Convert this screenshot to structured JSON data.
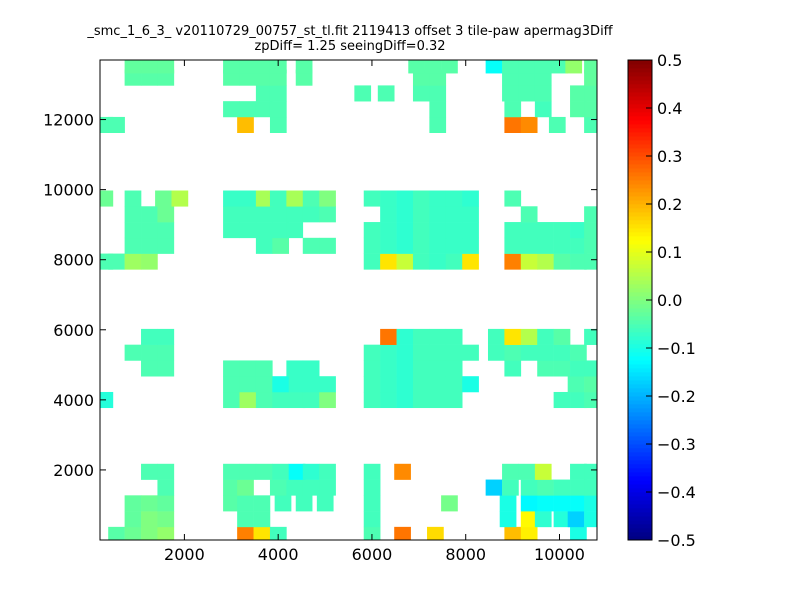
{
  "chart_data": {
    "type": "heatmap",
    "title_lines": [
      "_smc_1_6_3_ v20110729_00757_st_tl.fit 2119413 offset 3 tile-paw apermag3Diff",
      "zpDiff= 1.25 seeingDiff=0.32"
    ],
    "xlabel": "",
    "ylabel": "",
    "xlim": [
      200,
      10800
    ],
    "ylim": [
      0,
      13700
    ],
    "x_ticks": [
      2000,
      4000,
      6000,
      8000,
      10000
    ],
    "y_ticks": [
      2000,
      4000,
      6000,
      8000,
      10000,
      12000
    ],
    "colorbar": {
      "colormap": "jet",
      "range": [
        -0.5,
        0.5
      ],
      "ticks": [
        -0.5,
        -0.4,
        -0.3,
        -0.2,
        -0.1,
        0.0,
        0.1,
        0.2,
        0.3,
        0.4,
        0.5
      ],
      "tick_labels": [
        "−0.5",
        "−0.4",
        "−0.3",
        "−0.2",
        "−0.1",
        "0.0",
        "0.1",
        "0.2",
        "0.3",
        "0.4",
        "0.5"
      ]
    },
    "cell_size": [
      350,
      450
    ],
    "cells": [
      [
        550,
        150,
        -0.04
      ],
      [
        900,
        150,
        -0.02
      ],
      [
        1250,
        150,
        0.0
      ],
      [
        1600,
        150,
        0.02
      ],
      [
        3300,
        150,
        0.25
      ],
      [
        3650,
        150,
        0.15
      ],
      [
        4000,
        150,
        -0.06
      ],
      [
        6000,
        150,
        -0.05
      ],
      [
        6650,
        150,
        0.26
      ],
      [
        7350,
        150,
        0.16
      ],
      [
        9000,
        150,
        0.19
      ],
      [
        9350,
        150,
        0.14
      ],
      [
        10400,
        150,
        -0.1
      ],
      [
        900,
        600,
        -0.03
      ],
      [
        1250,
        600,
        0.0
      ],
      [
        1600,
        600,
        -0.01
      ],
      [
        3300,
        600,
        -0.05
      ],
      [
        3650,
        600,
        -0.05
      ],
      [
        6000,
        600,
        -0.06
      ],
      [
        8900,
        600,
        -0.1
      ],
      [
        9350,
        600,
        0.13
      ],
      [
        9650,
        600,
        -0.08
      ],
      [
        10050,
        600,
        -0.09
      ],
      [
        10350,
        600,
        -0.17
      ],
      [
        10700,
        600,
        -0.1
      ],
      [
        900,
        1050,
        -0.03
      ],
      [
        1250,
        1050,
        -0.02
      ],
      [
        1600,
        1050,
        -0.03
      ],
      [
        3000,
        1050,
        -0.04
      ],
      [
        3300,
        1050,
        -0.05
      ],
      [
        3650,
        1050,
        -0.05
      ],
      [
        4100,
        1050,
        -0.06
      ],
      [
        4550,
        1050,
        -0.06
      ],
      [
        5000,
        1050,
        -0.06
      ],
      [
        6000,
        1050,
        -0.06
      ],
      [
        7650,
        1050,
        -0.01
      ],
      [
        8900,
        1050,
        -0.1
      ],
      [
        9350,
        1050,
        -0.13
      ],
      [
        9700,
        1050,
        -0.12
      ],
      [
        10050,
        1050,
        -0.12
      ],
      [
        10400,
        1050,
        -0.12
      ],
      [
        10700,
        1050,
        -0.1
      ],
      [
        1600,
        1500,
        -0.05
      ],
      [
        3000,
        1500,
        -0.04
      ],
      [
        3300,
        1500,
        -0.02
      ],
      [
        4000,
        1500,
        -0.05
      ],
      [
        4350,
        1500,
        -0.06
      ],
      [
        4700,
        1500,
        -0.06
      ],
      [
        5050,
        1500,
        -0.06
      ],
      [
        6000,
        1500,
        -0.06
      ],
      [
        8600,
        1500,
        -0.17
      ],
      [
        8950,
        1500,
        -0.06
      ],
      [
        9350,
        1500,
        -0.06
      ],
      [
        9700,
        1500,
        -0.05
      ],
      [
        10050,
        1500,
        -0.06
      ],
      [
        10400,
        1500,
        -0.06
      ],
      [
        10700,
        1500,
        -0.06
      ],
      [
        1250,
        1950,
        -0.05
      ],
      [
        1600,
        1950,
        -0.05
      ],
      [
        3000,
        1950,
        -0.05
      ],
      [
        3350,
        1950,
        -0.05
      ],
      [
        3700,
        1950,
        -0.05
      ],
      [
        4050,
        1950,
        -0.06
      ],
      [
        4400,
        1950,
        -0.12
      ],
      [
        4700,
        1950,
        -0.08
      ],
      [
        5050,
        1950,
        -0.06
      ],
      [
        6000,
        1950,
        -0.06
      ],
      [
        6650,
        1950,
        0.24
      ],
      [
        8950,
        1950,
        -0.05
      ],
      [
        9300,
        1950,
        -0.05
      ],
      [
        9650,
        1950,
        0.07
      ],
      [
        10400,
        1950,
        -0.06
      ],
      [
        10700,
        1950,
        -0.06
      ],
      [
        300,
        4000,
        -0.09
      ],
      [
        3000,
        4000,
        -0.05
      ],
      [
        3350,
        4000,
        0.03
      ],
      [
        3700,
        4000,
        -0.05
      ],
      [
        4050,
        4000,
        -0.06
      ],
      [
        4400,
        4000,
        -0.06
      ],
      [
        4700,
        4000,
        -0.06
      ],
      [
        5050,
        4000,
        0.0
      ],
      [
        6000,
        4000,
        -0.06
      ],
      [
        6350,
        4000,
        -0.07
      ],
      [
        6700,
        4000,
        -0.08
      ],
      [
        7050,
        4000,
        -0.06
      ],
      [
        7400,
        4000,
        -0.06
      ],
      [
        7750,
        4000,
        -0.06
      ],
      [
        10050,
        4000,
        -0.06
      ],
      [
        10400,
        4000,
        -0.06
      ],
      [
        10700,
        4000,
        -0.05
      ],
      [
        3000,
        4450,
        -0.05
      ],
      [
        3350,
        4450,
        -0.05
      ],
      [
        3700,
        4450,
        -0.05
      ],
      [
        4050,
        4450,
        -0.1
      ],
      [
        4400,
        4450,
        -0.07
      ],
      [
        4700,
        4450,
        -0.07
      ],
      [
        5050,
        4450,
        -0.07
      ],
      [
        6000,
        4450,
        -0.06
      ],
      [
        6350,
        4450,
        -0.07
      ],
      [
        6700,
        4450,
        -0.08
      ],
      [
        7050,
        4450,
        -0.06
      ],
      [
        7400,
        4450,
        -0.06
      ],
      [
        7750,
        4450,
        -0.06
      ],
      [
        8100,
        4450,
        -0.1
      ],
      [
        10350,
        4450,
        -0.05
      ],
      [
        10700,
        4450,
        -0.04
      ],
      [
        1250,
        4900,
        -0.05
      ],
      [
        1600,
        4900,
        -0.05
      ],
      [
        3000,
        4900,
        -0.05
      ],
      [
        3350,
        4900,
        -0.05
      ],
      [
        3700,
        4900,
        -0.05
      ],
      [
        4350,
        4900,
        -0.07
      ],
      [
        4700,
        4900,
        -0.07
      ],
      [
        6000,
        4900,
        -0.06
      ],
      [
        6350,
        4900,
        -0.07
      ],
      [
        6700,
        4900,
        -0.08
      ],
      [
        7050,
        4900,
        -0.06
      ],
      [
        7400,
        4900,
        -0.06
      ],
      [
        7750,
        4900,
        -0.06
      ],
      [
        9000,
        4900,
        -0.06
      ],
      [
        9700,
        4900,
        -0.05
      ],
      [
        10050,
        4900,
        -0.05
      ],
      [
        10400,
        4900,
        -0.06
      ],
      [
        10700,
        4900,
        -0.06
      ],
      [
        900,
        5350,
        -0.05
      ],
      [
        1250,
        5350,
        -0.05
      ],
      [
        1600,
        5350,
        -0.05
      ],
      [
        6000,
        5350,
        -0.06
      ],
      [
        6350,
        5350,
        -0.07
      ],
      [
        6700,
        5350,
        -0.08
      ],
      [
        7050,
        5350,
        -0.06
      ],
      [
        7400,
        5350,
        -0.06
      ],
      [
        7750,
        5350,
        -0.06
      ],
      [
        8100,
        5350,
        -0.06
      ],
      [
        8650,
        5350,
        -0.06
      ],
      [
        9000,
        5350,
        -0.05
      ],
      [
        9350,
        5350,
        -0.06
      ],
      [
        9700,
        5350,
        -0.06
      ],
      [
        10050,
        5350,
        -0.06
      ],
      [
        10400,
        5350,
        -0.05
      ],
      [
        1250,
        5800,
        -0.06
      ],
      [
        1600,
        5800,
        -0.06
      ],
      [
        6350,
        5800,
        0.26
      ],
      [
        6700,
        5800,
        -0.08
      ],
      [
        7050,
        5800,
        -0.06
      ],
      [
        7400,
        5800,
        -0.06
      ],
      [
        7750,
        5800,
        -0.06
      ],
      [
        8650,
        5800,
        -0.06
      ],
      [
        9000,
        5800,
        0.15
      ],
      [
        9350,
        5800,
        0.05
      ],
      [
        9700,
        5800,
        -0.06
      ],
      [
        10050,
        5800,
        -0.04
      ],
      [
        10700,
        5800,
        -0.06
      ],
      [
        300,
        7950,
        -0.05
      ],
      [
        550,
        7950,
        -0.05
      ],
      [
        900,
        7950,
        0.03
      ],
      [
        1250,
        7950,
        0.02
      ],
      [
        6000,
        7950,
        -0.06
      ],
      [
        6350,
        7950,
        0.15
      ],
      [
        6700,
        7950,
        0.07
      ],
      [
        7050,
        7950,
        -0.06
      ],
      [
        7400,
        7950,
        -0.07
      ],
      [
        7750,
        7950,
        -0.06
      ],
      [
        8100,
        7950,
        0.15
      ],
      [
        9000,
        7950,
        0.25
      ],
      [
        9350,
        7950,
        0.07
      ],
      [
        9700,
        7950,
        0.05
      ],
      [
        10050,
        7950,
        -0.04
      ],
      [
        10400,
        7950,
        -0.05
      ],
      [
        10700,
        7950,
        -0.05
      ],
      [
        900,
        8400,
        -0.05
      ],
      [
        1250,
        8400,
        -0.05
      ],
      [
        1600,
        8400,
        -0.05
      ],
      [
        3700,
        8400,
        -0.06
      ],
      [
        4050,
        8400,
        -0.04
      ],
      [
        4700,
        8400,
        -0.05
      ],
      [
        5050,
        8400,
        -0.05
      ],
      [
        6000,
        8400,
        -0.06
      ],
      [
        6350,
        8400,
        -0.07
      ],
      [
        6700,
        8400,
        -0.08
      ],
      [
        7050,
        8400,
        -0.06
      ],
      [
        7400,
        8400,
        -0.07
      ],
      [
        7750,
        8400,
        -0.07
      ],
      [
        8100,
        8400,
        -0.07
      ],
      [
        9000,
        8400,
        -0.06
      ],
      [
        9350,
        8400,
        -0.06
      ],
      [
        9700,
        8400,
        -0.06
      ],
      [
        10050,
        8400,
        -0.06
      ],
      [
        10400,
        8400,
        -0.06
      ],
      [
        10700,
        8400,
        -0.05
      ],
      [
        900,
        8850,
        -0.05
      ],
      [
        1250,
        8850,
        -0.05
      ],
      [
        1600,
        8850,
        -0.05
      ],
      [
        3000,
        8850,
        -0.06
      ],
      [
        3350,
        8850,
        -0.06
      ],
      [
        3700,
        8850,
        -0.06
      ],
      [
        4050,
        8850,
        -0.06
      ],
      [
        4350,
        8850,
        -0.06
      ],
      [
        6000,
        8850,
        -0.06
      ],
      [
        6350,
        8850,
        -0.07
      ],
      [
        6700,
        8850,
        -0.08
      ],
      [
        7050,
        8850,
        -0.06
      ],
      [
        7400,
        8850,
        -0.07
      ],
      [
        7750,
        8850,
        -0.07
      ],
      [
        8100,
        8850,
        -0.07
      ],
      [
        9000,
        8850,
        -0.06
      ],
      [
        9350,
        8850,
        -0.06
      ],
      [
        9700,
        8850,
        -0.06
      ],
      [
        10050,
        8850,
        -0.06
      ],
      [
        10400,
        8850,
        -0.07
      ],
      [
        10700,
        8850,
        -0.05
      ],
      [
        900,
        9300,
        -0.05
      ],
      [
        1250,
        9300,
        -0.05
      ],
      [
        1600,
        9300,
        -0.02
      ],
      [
        3000,
        9300,
        -0.06
      ],
      [
        3350,
        9300,
        -0.06
      ],
      [
        3700,
        9300,
        -0.06
      ],
      [
        4050,
        9300,
        -0.06
      ],
      [
        4350,
        9300,
        -0.06
      ],
      [
        4700,
        9300,
        -0.06
      ],
      [
        5050,
        9300,
        -0.05
      ],
      [
        6350,
        9300,
        -0.07
      ],
      [
        6700,
        9300,
        -0.08
      ],
      [
        7050,
        9300,
        -0.06
      ],
      [
        7400,
        9300,
        -0.07
      ],
      [
        7750,
        9300,
        -0.07
      ],
      [
        8100,
        9300,
        -0.07
      ],
      [
        9350,
        9300,
        -0.05
      ],
      [
        10700,
        9300,
        -0.05
      ],
      [
        300,
        9750,
        -0.02
      ],
      [
        900,
        9750,
        -0.05
      ],
      [
        1550,
        9750,
        -0.02
      ],
      [
        1900,
        9750,
        0.05
      ],
      [
        3000,
        9750,
        -0.07
      ],
      [
        3350,
        9750,
        -0.07
      ],
      [
        3700,
        9750,
        0.04
      ],
      [
        4000,
        9750,
        -0.06
      ],
      [
        4350,
        9750,
        0.04
      ],
      [
        4700,
        9750,
        -0.05
      ],
      [
        5050,
        9750,
        0.0
      ],
      [
        6000,
        9750,
        -0.06
      ],
      [
        6350,
        9750,
        -0.07
      ],
      [
        6700,
        9750,
        -0.08
      ],
      [
        7050,
        9750,
        -0.06
      ],
      [
        7400,
        9750,
        -0.07
      ],
      [
        7750,
        9750,
        -0.07
      ],
      [
        8100,
        9750,
        -0.08
      ],
      [
        9000,
        9750,
        -0.05
      ],
      [
        300,
        11850,
        -0.05
      ],
      [
        550,
        11850,
        -0.05
      ],
      [
        3300,
        11850,
        0.19
      ],
      [
        4000,
        11850,
        -0.05
      ],
      [
        7400,
        11850,
        -0.05
      ],
      [
        9000,
        11850,
        0.26
      ],
      [
        9350,
        11850,
        0.24
      ],
      [
        9950,
        11850,
        -0.05
      ],
      [
        10700,
        11850,
        -0.05
      ],
      [
        3000,
        12300,
        -0.05
      ],
      [
        3350,
        12300,
        -0.05
      ],
      [
        3700,
        12300,
        -0.05
      ],
      [
        4000,
        12300,
        -0.05
      ],
      [
        7400,
        12300,
        -0.05
      ],
      [
        9000,
        12300,
        -0.05
      ],
      [
        9650,
        12300,
        -0.06
      ],
      [
        10400,
        12300,
        -0.04
      ],
      [
        10700,
        12300,
        -0.04
      ],
      [
        3700,
        12750,
        -0.05
      ],
      [
        4000,
        12750,
        -0.05
      ],
      [
        5800,
        12750,
        -0.05
      ],
      [
        6300,
        12750,
        -0.05
      ],
      [
        7050,
        12750,
        -0.05
      ],
      [
        7400,
        12750,
        -0.05
      ],
      [
        8950,
        12750,
        -0.05
      ],
      [
        9300,
        12750,
        -0.05
      ],
      [
        9650,
        12750,
        -0.05
      ],
      [
        10400,
        12750,
        -0.04
      ],
      [
        10700,
        12750,
        -0.04
      ],
      [
        900,
        13200,
        -0.04
      ],
      [
        1250,
        13200,
        -0.04
      ],
      [
        1600,
        13200,
        -0.04
      ],
      [
        3000,
        13200,
        -0.04
      ],
      [
        3350,
        13200,
        -0.04
      ],
      [
        3700,
        13200,
        -0.04
      ],
      [
        4000,
        13200,
        -0.04
      ],
      [
        4550,
        13200,
        -0.04
      ],
      [
        7050,
        13200,
        -0.04
      ],
      [
        7400,
        13200,
        -0.04
      ],
      [
        8950,
        13200,
        -0.05
      ],
      [
        9300,
        13200,
        -0.05
      ],
      [
        9650,
        13200,
        -0.05
      ],
      [
        10700,
        13200,
        -0.03
      ],
      [
        900,
        13550,
        -0.03
      ],
      [
        1250,
        13550,
        -0.03
      ],
      [
        1600,
        13550,
        -0.03
      ],
      [
        3000,
        13550,
        -0.04
      ],
      [
        3350,
        13550,
        -0.04
      ],
      [
        3700,
        13550,
        -0.04
      ],
      [
        4000,
        13550,
        -0.04
      ],
      [
        4550,
        13550,
        -0.04
      ],
      [
        6950,
        13550,
        -0.04
      ],
      [
        7300,
        13550,
        -0.04
      ],
      [
        7650,
        13550,
        -0.04
      ],
      [
        8600,
        13550,
        -0.12
      ],
      [
        8950,
        13550,
        -0.05
      ],
      [
        9300,
        13550,
        -0.05
      ],
      [
        9650,
        13550,
        -0.05
      ],
      [
        10000,
        13550,
        -0.05
      ],
      [
        10300,
        13550,
        0.02
      ],
      [
        10700,
        13550,
        -0.03
      ]
    ]
  }
}
